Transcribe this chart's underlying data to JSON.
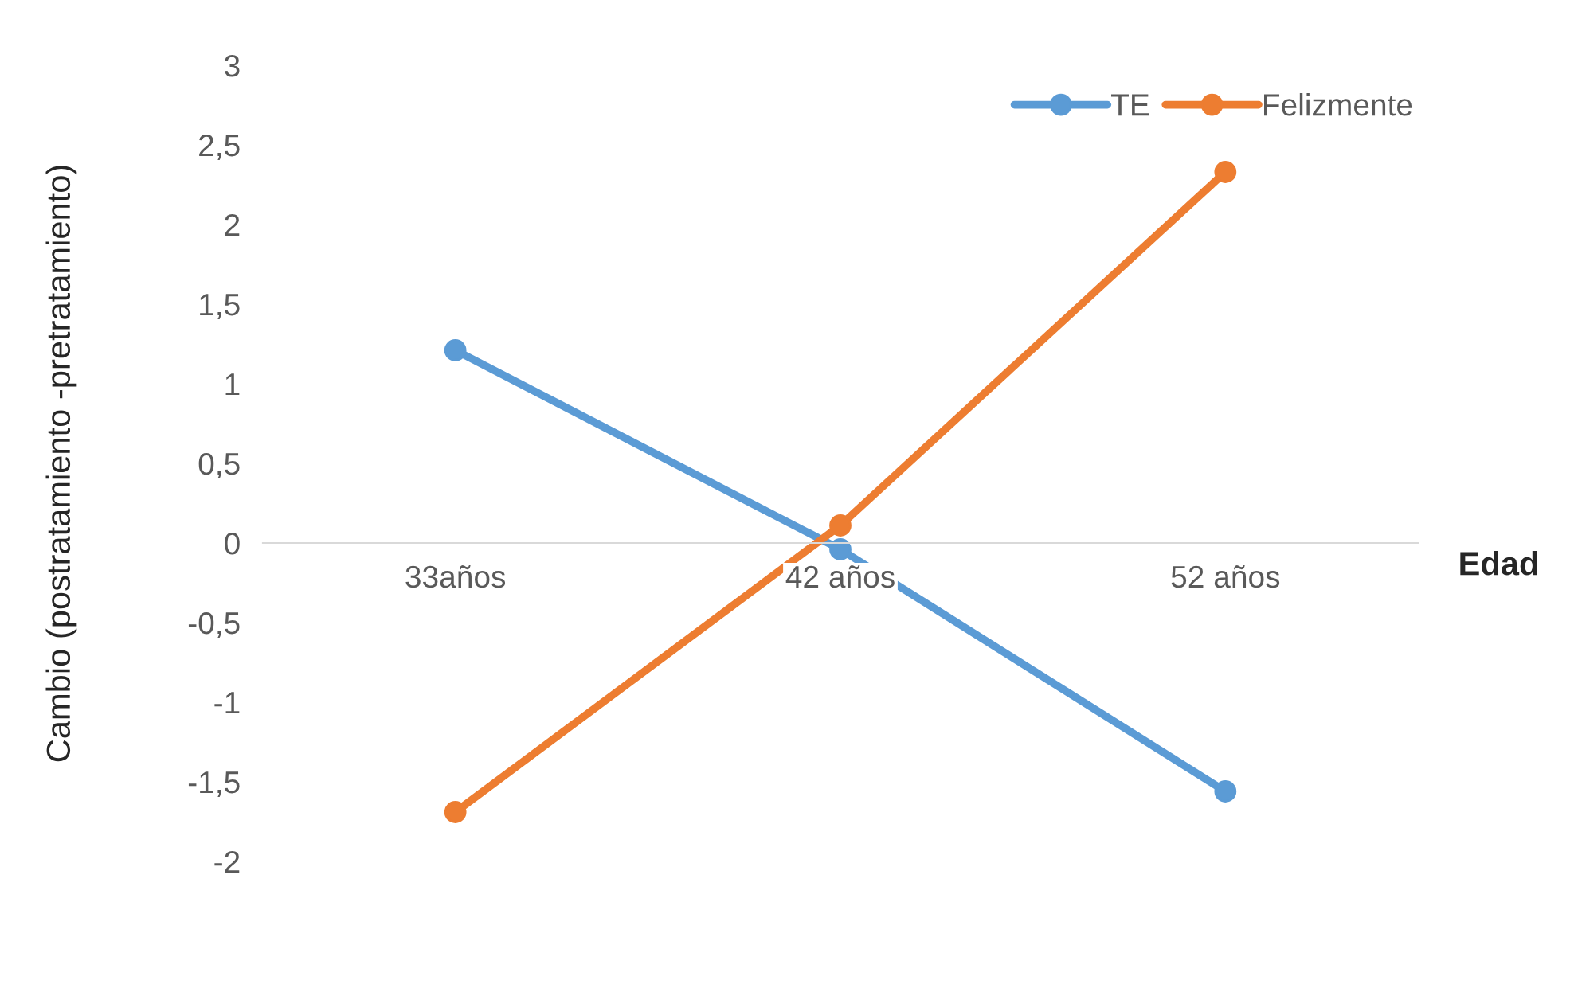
{
  "chart_data": {
    "type": "line",
    "ylabel": "Cambio (postratamiento -pretratamiento)",
    "xlabel": "Edad",
    "categories": [
      "33años",
      "42 años",
      "52 años"
    ],
    "series": [
      {
        "name": "TE",
        "color": "#5b9bd5",
        "values": [
          1.21,
          -0.04,
          -1.56
        ]
      },
      {
        "name": "Felizmente",
        "color": "#ed7d31",
        "values": [
          -1.69,
          0.11,
          2.33
        ]
      }
    ],
    "ylim": [
      -2,
      3
    ],
    "yticks": [
      {
        "value": -2,
        "label": "-2"
      },
      {
        "value": -1.5,
        "label": "-1,5"
      },
      {
        "value": -1,
        "label": "-1"
      },
      {
        "value": -0.5,
        "label": "-0,5"
      },
      {
        "value": 0,
        "label": "0"
      },
      {
        "value": 0.5,
        "label": "0,5"
      },
      {
        "value": 1,
        "label": "1"
      },
      {
        "value": 1.5,
        "label": "1,5"
      },
      {
        "value": 2,
        "label": "2"
      },
      {
        "value": 2.5,
        "label": "2,5"
      },
      {
        "value": 3,
        "label": "3"
      }
    ],
    "grid": false,
    "legend": "top right",
    "marker": "circle",
    "line_style": "solid"
  }
}
